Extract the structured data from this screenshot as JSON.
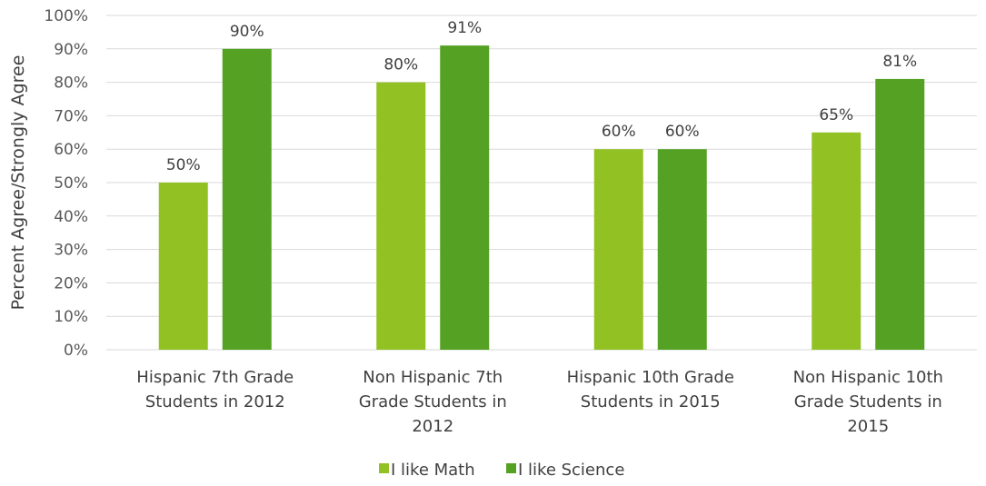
{
  "chart_data": {
    "type": "bar",
    "title": "",
    "ylabel": "Percent Agree/Strongly Agree",
    "xlabel": "",
    "ylim": [
      0,
      100
    ],
    "yticks": [
      0,
      10,
      20,
      30,
      40,
      50,
      60,
      70,
      80,
      90,
      100
    ],
    "value_format": "percent",
    "grid": true,
    "legend_position": "bottom",
    "categories": [
      [
        "Hispanic 7th Grade",
        "Students in 2012"
      ],
      [
        "Non Hispanic  7th",
        "Grade Students in",
        "2012"
      ],
      [
        "Hispanic 10th Grade",
        "Students in 2015"
      ],
      [
        "Non Hispanic 10th",
        "Grade Students in",
        "2015"
      ]
    ],
    "series": [
      {
        "name": "I like Math",
        "color": "#92c123",
        "values": [
          50,
          80,
          60,
          65
        ]
      },
      {
        "name": "I like Science",
        "color": "#54a124",
        "values": [
          90,
          91,
          60,
          81
        ]
      }
    ]
  }
}
